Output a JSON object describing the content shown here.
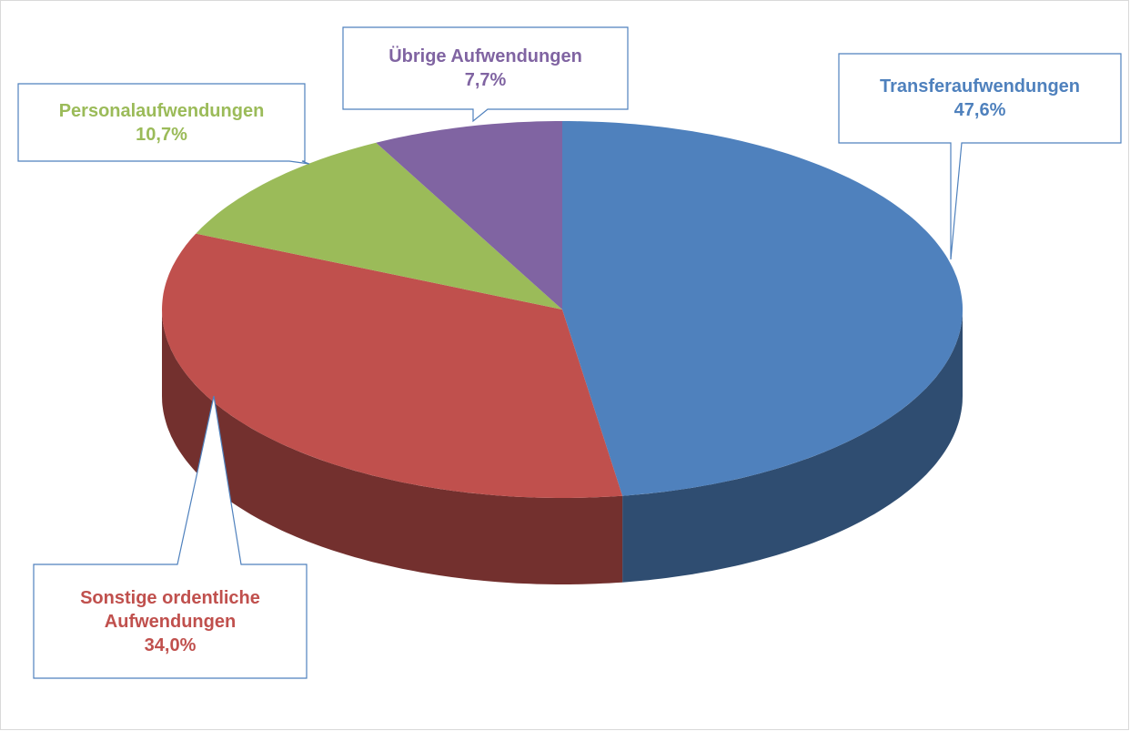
{
  "chart_data": {
    "type": "pie",
    "categories": [
      "Transferaufwendungen",
      "Sonstige ordentliche Aufwendungen",
      "Personalaufwendungen",
      "Übrige Aufwendungen"
    ],
    "values": [
      47.6,
      34.0,
      10.7,
      7.7
    ],
    "value_labels": [
      "47,6%",
      "34,0%",
      "10,7%",
      "7,7%"
    ],
    "colors": [
      "#4f81bd",
      "#c0504d",
      "#9bbb59",
      "#8064a2"
    ]
  }
}
